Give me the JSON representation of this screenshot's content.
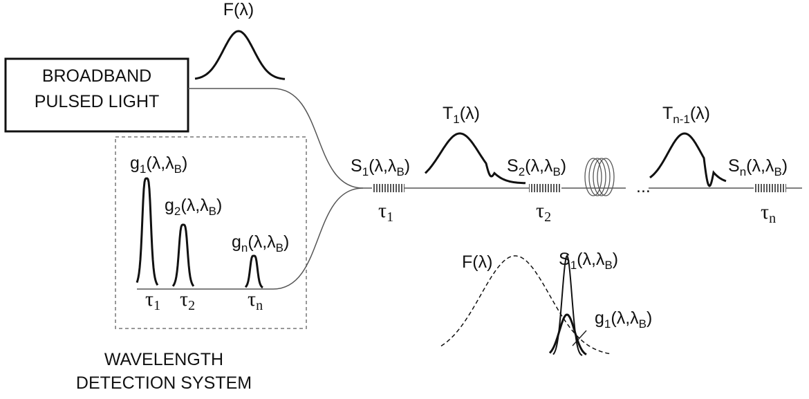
{
  "labels": [
    [
      "F(λ)"
    ],
    [
      "g",
      "1",
      "(λ,λ",
      "B",
      ")"
    ],
    [
      "g",
      "2",
      "(λ,λ",
      "B",
      ")"
    ],
    [
      "g",
      "n",
      "(λ,λ",
      "B",
      ")"
    ],
    [
      "τ",
      "1"
    ],
    [
      "τ",
      "2"
    ],
    [
      "τ",
      "n"
    ],
    [
      "S",
      "1",
      "(λ,λ",
      "B",
      ")"
    ],
    [
      "T",
      "1",
      "(λ)"
    ],
    [
      "S",
      "2",
      "(λ,λ",
      "B",
      ")"
    ],
    [
      "T",
      "n-1",
      "(λ)"
    ],
    [
      "S",
      "n",
      "(λ,λ",
      "B",
      ")"
    ],
    [
      "..."
    ],
    [
      "τ",
      "1"
    ],
    [
      "τ",
      "2"
    ],
    [
      "τ",
      "n"
    ],
    [
      "F(λ)"
    ],
    [
      "S",
      "1",
      "(λ,λ",
      "B",
      ")"
    ],
    [
      "g",
      "1",
      "(λ,λ",
      "B",
      ")"
    ]
  ],
  "source_lines": [
    "BROADBAND",
    "PULSED LIGHT"
  ],
  "detection_lines": [
    "WAVELENGTH",
    "DETECTION SYSTEM"
  ]
}
